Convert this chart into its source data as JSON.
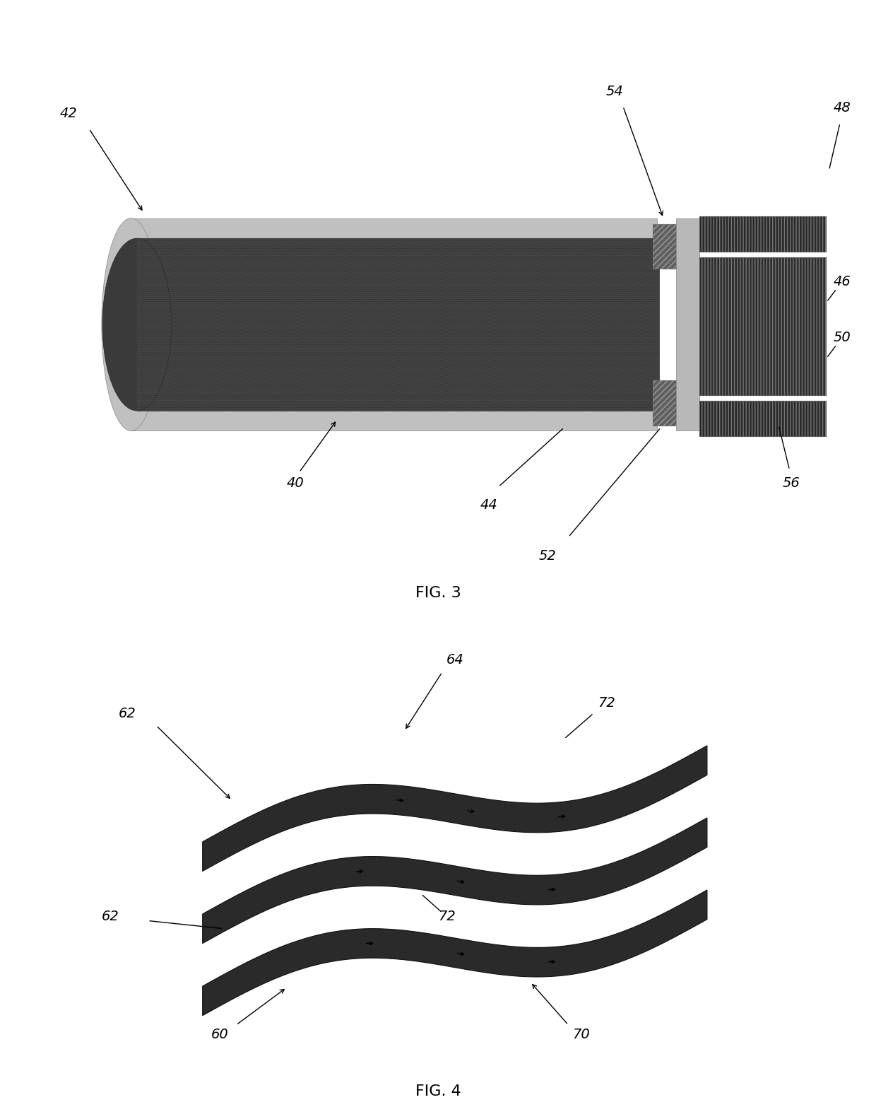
{
  "fig_width": 12.4,
  "fig_height": 15.83,
  "bg_color": "#ffffff",
  "fig3_title": "FIG. 3",
  "fig4_title": "FIG. 4"
}
